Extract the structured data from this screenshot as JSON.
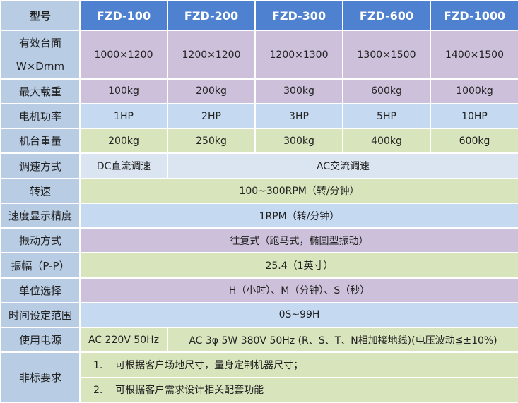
{
  "table": {
    "header": [
      "型号",
      "FZD-100",
      "FZD-200",
      "FZD-300",
      "FZD-600",
      "FZD-1000"
    ],
    "rows": [
      {
        "label": [
          "有效台面",
          "W×Dmm"
        ],
        "color": "#ccc0da",
        "cells": [
          "1000×1200",
          "1200×1200",
          "1200×1300",
          "1300×1500",
          "1400×1500"
        ]
      },
      {
        "label": [
          "最大载重"
        ],
        "color": "#ccc0da",
        "cells": [
          "100kg",
          "200kg",
          "300kg",
          "600kg",
          "1000kg"
        ]
      },
      {
        "label": [
          "电机功率"
        ],
        "color": "#c5d9f1",
        "cells": [
          "1HP",
          "2HP",
          "3HP",
          "5HP",
          "10HP"
        ]
      },
      {
        "label": [
          "机台重量"
        ],
        "color": "#d7e4bc",
        "cells": [
          "200kg",
          "250kg",
          "300kg",
          "400kg",
          "600kg"
        ]
      },
      {
        "label": [
          "调速方式"
        ],
        "color": "#dbe5f1",
        "cells": [
          "DC直流调速",
          "AC交流调速"
        ]
      },
      {
        "label": [
          "转速"
        ],
        "color": "#d7e4bc",
        "cells": [
          "100~300RPM（转/分钟）"
        ]
      },
      {
        "label": [
          "速度显示精度"
        ],
        "color": "#c5d9f1",
        "cells": [
          "1RPM（转/分钟）"
        ]
      },
      {
        "label": [
          "振动方式"
        ],
        "color": "#ccc0da",
        "cells": [
          "往复式（跑马式，椭圆型振动）"
        ]
      },
      {
        "label": [
          "振幅（P-P）"
        ],
        "color": "#d7e4bc",
        "cells": [
          "25.4（1英寸）"
        ]
      },
      {
        "label": [
          "单位选择"
        ],
        "color": "#ccc0da",
        "cells": [
          "H（小时）、M（分钟）、S（秒）"
        ]
      },
      {
        "label": [
          "时间设定范围"
        ],
        "color": "#c5d9f1",
        "cells": [
          "0S~99H"
        ]
      },
      {
        "label": [
          "使用电源"
        ],
        "color": "#d7e4bc",
        "cells": [
          "AC 220V 50Hz",
          "AC 3φ 5W 380V 50Hz (R、S、T、N相加接地线)(电压波动≦±10%)"
        ]
      }
    ],
    "notes": {
      "label": "非标要求",
      "color": "#d7e4bc",
      "items": [
        "1.    可根据客户场地尺寸，量身定制机器尺寸；",
        "2.    可根据客户需求设计相关配套功能"
      ]
    }
  }
}
